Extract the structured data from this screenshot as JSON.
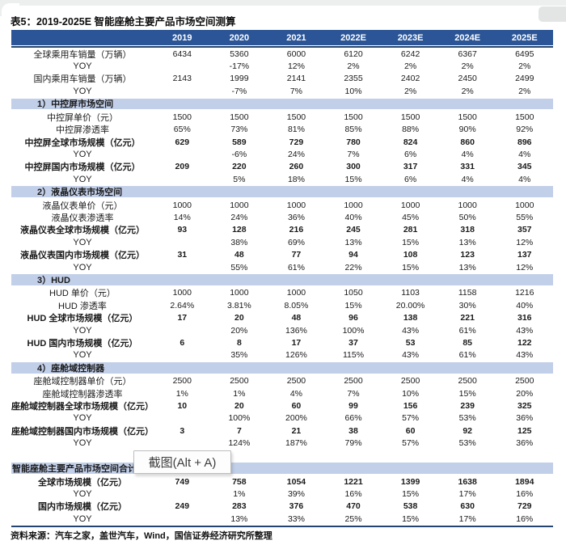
{
  "document": {
    "title_prefix": "表5：",
    "title_rest": "2019-2025E 智能座舱主要产品市场空间测算",
    "source": "资料来源：汽车之家，盖世汽车，Wind，国信证券经济研究所整理"
  },
  "overlay": {
    "tooltip": "截图(Alt + A)"
  },
  "colors": {
    "header_bg": "#2b5596",
    "section_bg": "#c2cfe9",
    "rule": "#24456f",
    "chrome_gray": "#edefee"
  },
  "chart_data": {
    "type": "table",
    "title": "2019-2025E 智能座舱主要产品市场空间测算",
    "columns": [
      "",
      "2019",
      "2020",
      "2021",
      "2022E",
      "2023E",
      "2024E",
      "2025E"
    ],
    "rows": [
      {
        "type": "data",
        "label": "全球乘用车销量（万辆）",
        "values": [
          "6434",
          "5360",
          "6000",
          "6120",
          "6242",
          "6367",
          "6495"
        ]
      },
      {
        "type": "data",
        "label": "YOY",
        "values": [
          "",
          "-17%",
          "12%",
          "2%",
          "2%",
          "2%",
          "2%"
        ]
      },
      {
        "type": "data",
        "label": "国内乘用车销量（万辆）",
        "values": [
          "2143",
          "1999",
          "2141",
          "2355",
          "2402",
          "2450",
          "2499"
        ]
      },
      {
        "type": "data",
        "label": "YOY",
        "values": [
          "",
          "-7%",
          "7%",
          "10%",
          "2%",
          "2%",
          "2%"
        ]
      },
      {
        "type": "section",
        "label": "1）中控屏市场空间"
      },
      {
        "type": "data",
        "label": "中控屏单价（元）",
        "values": [
          "1500",
          "1500",
          "1500",
          "1500",
          "1500",
          "1500",
          "1500"
        ]
      },
      {
        "type": "data",
        "label": "中控屏渗透率",
        "values": [
          "65%",
          "73%",
          "81%",
          "85%",
          "88%",
          "90%",
          "92%"
        ]
      },
      {
        "type": "bold",
        "label": "中控屏全球市场规模（亿元）",
        "values": [
          "629",
          "589",
          "729",
          "780",
          "824",
          "860",
          "896"
        ]
      },
      {
        "type": "data",
        "label": "YOY",
        "values": [
          "",
          "-6%",
          "24%",
          "7%",
          "6%",
          "4%",
          "4%"
        ]
      },
      {
        "type": "bold",
        "label": "中控屏国内市场规模（亿元）",
        "values": [
          "209",
          "220",
          "260",
          "300",
          "317",
          "331",
          "345"
        ]
      },
      {
        "type": "data",
        "label": "YOY",
        "values": [
          "",
          "5%",
          "18%",
          "15%",
          "6%",
          "4%",
          "4%"
        ]
      },
      {
        "type": "section",
        "label": "2）液晶仪表市场空间"
      },
      {
        "type": "data",
        "label": "液晶仪表单价（元）",
        "values": [
          "1000",
          "1000",
          "1000",
          "1000",
          "1000",
          "1000",
          "1000"
        ]
      },
      {
        "type": "data",
        "label": "液晶仪表渗透率",
        "values": [
          "14%",
          "24%",
          "36%",
          "40%",
          "45%",
          "50%",
          "55%"
        ]
      },
      {
        "type": "bold",
        "label": "液晶仪表全球市场规模（亿元）",
        "values": [
          "93",
          "128",
          "216",
          "245",
          "281",
          "318",
          "357"
        ]
      },
      {
        "type": "data",
        "label": "YOY",
        "values": [
          "",
          "38%",
          "69%",
          "13%",
          "15%",
          "13%",
          "12%"
        ]
      },
      {
        "type": "bold",
        "label": "液晶仪表国内市场规模（亿元）",
        "values": [
          "31",
          "48",
          "77",
          "94",
          "108",
          "123",
          "137"
        ]
      },
      {
        "type": "data",
        "label": "YOY",
        "values": [
          "",
          "55%",
          "61%",
          "22%",
          "15%",
          "13%",
          "12%"
        ]
      },
      {
        "type": "section",
        "label": "3）HUD"
      },
      {
        "type": "data",
        "label": "HUD 单价（元）",
        "values": [
          "1000",
          "1000",
          "1000",
          "1050",
          "1103",
          "1158",
          "1216"
        ]
      },
      {
        "type": "data",
        "label": "HUD 渗透率",
        "values": [
          "2.64%",
          "3.81%",
          "8.05%",
          "15%",
          "20.00%",
          "30%",
          "40%"
        ]
      },
      {
        "type": "bold",
        "label": "HUD 全球市场规模（亿元）",
        "values": [
          "17",
          "20",
          "48",
          "96",
          "138",
          "221",
          "316"
        ]
      },
      {
        "type": "data",
        "label": "YOY",
        "values": [
          "",
          "20%",
          "136%",
          "100%",
          "43%",
          "61%",
          "43%"
        ]
      },
      {
        "type": "bold",
        "label": "HUD 国内市场规模（亿元）",
        "values": [
          "6",
          "8",
          "17",
          "37",
          "53",
          "85",
          "122"
        ]
      },
      {
        "type": "data",
        "label": "YOY",
        "values": [
          "",
          "35%",
          "126%",
          "115%",
          "43%",
          "61%",
          "43%"
        ]
      },
      {
        "type": "section",
        "label": "4）座舱域控制器"
      },
      {
        "type": "data",
        "label": "座舱域控制器单价（元）",
        "values": [
          "2500",
          "2500",
          "2500",
          "2500",
          "2500",
          "2500",
          "2500"
        ]
      },
      {
        "type": "data",
        "label": "座舱域控制器渗透率",
        "values": [
          "1%",
          "1%",
          "4%",
          "7%",
          "10%",
          "15%",
          "20%"
        ]
      },
      {
        "type": "bold",
        "label": "座舱域控制器全球市场规模（亿元）",
        "values": [
          "10",
          "20",
          "60",
          "99",
          "156",
          "239",
          "325"
        ]
      },
      {
        "type": "data",
        "label": "YOY",
        "values": [
          "",
          "100%",
          "200%",
          "66%",
          "57%",
          "53%",
          "36%"
        ]
      },
      {
        "type": "bold",
        "label": "座舱域控制器国内市场规模（亿元）",
        "values": [
          "3",
          "7",
          "21",
          "38",
          "60",
          "92",
          "125"
        ]
      },
      {
        "type": "data",
        "label": "YOY",
        "values": [
          "",
          "124%",
          "187%",
          "79%",
          "57%",
          "53%",
          "36%"
        ]
      },
      {
        "type": "spacer",
        "label": ""
      },
      {
        "type": "section_total",
        "label": "智能座舱主要产品市场空间合计"
      },
      {
        "type": "bold",
        "label": "全球市场规模（亿元）",
        "values": [
          "749",
          "758",
          "1054",
          "1221",
          "1399",
          "1638",
          "1894"
        ]
      },
      {
        "type": "data",
        "label": "YOY",
        "values": [
          "",
          "1%",
          "39%",
          "16%",
          "15%",
          "17%",
          "16%"
        ]
      },
      {
        "type": "bold",
        "label": "国内市场规模（亿元）",
        "values": [
          "249",
          "283",
          "376",
          "470",
          "538",
          "630",
          "729"
        ]
      },
      {
        "type": "data",
        "label": "YOY",
        "values": [
          "",
          "13%",
          "33%",
          "25%",
          "15%",
          "17%",
          "16%"
        ]
      }
    ]
  }
}
